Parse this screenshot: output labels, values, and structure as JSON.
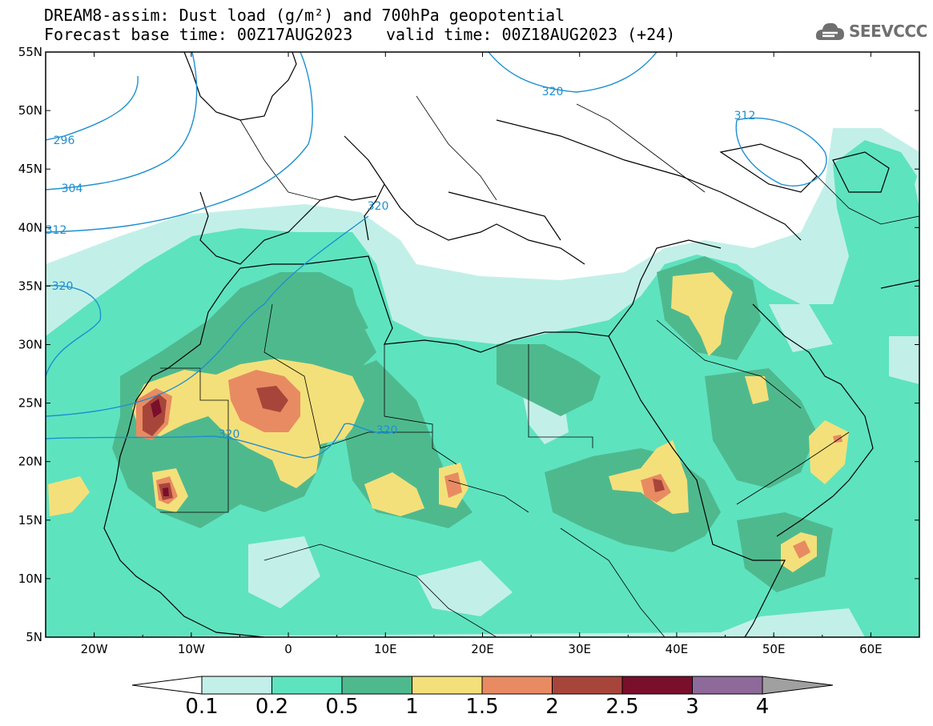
{
  "title": {
    "line1": "DREAM8-assim: Dust load (g/m²) and 700hPa geopotential",
    "line2_left": "Forecast base time: 00Z17AUG2023",
    "line2_right": "valid time: 00Z18AUG2023 (+24)"
  },
  "logo": {
    "text": "SEEVCCC",
    "icon": "cloud-logo-icon"
  },
  "map": {
    "lon_range": [
      -25,
      65
    ],
    "lat_range": [
      5,
      55
    ],
    "x_ticks": [
      "20W",
      "10W",
      "0",
      "10E",
      "20E",
      "30E",
      "40E",
      "50E",
      "60E"
    ],
    "y_ticks": [
      "55N",
      "50N",
      "45N",
      "40N",
      "35N",
      "30N",
      "25N",
      "20N",
      "15N",
      "10N",
      "5N"
    ],
    "contour_labels": [
      "296",
      "304",
      "312",
      "320",
      "320",
      "320",
      "320",
      "320",
      "312"
    ]
  },
  "colorbar": {
    "labels": [
      "0.1",
      "0.2",
      "0.5",
      "1",
      "1.5",
      "2",
      "2.5",
      "3",
      "4"
    ],
    "colors": [
      "#c2f0e8",
      "#5ee3bf",
      "#4fb98e",
      "#f4e07a",
      "#e88b62",
      "#a8453a",
      "#7a0f2b",
      "#8e6a9b",
      "#a0a0a0"
    ],
    "under_color": "#ffffff"
  }
}
